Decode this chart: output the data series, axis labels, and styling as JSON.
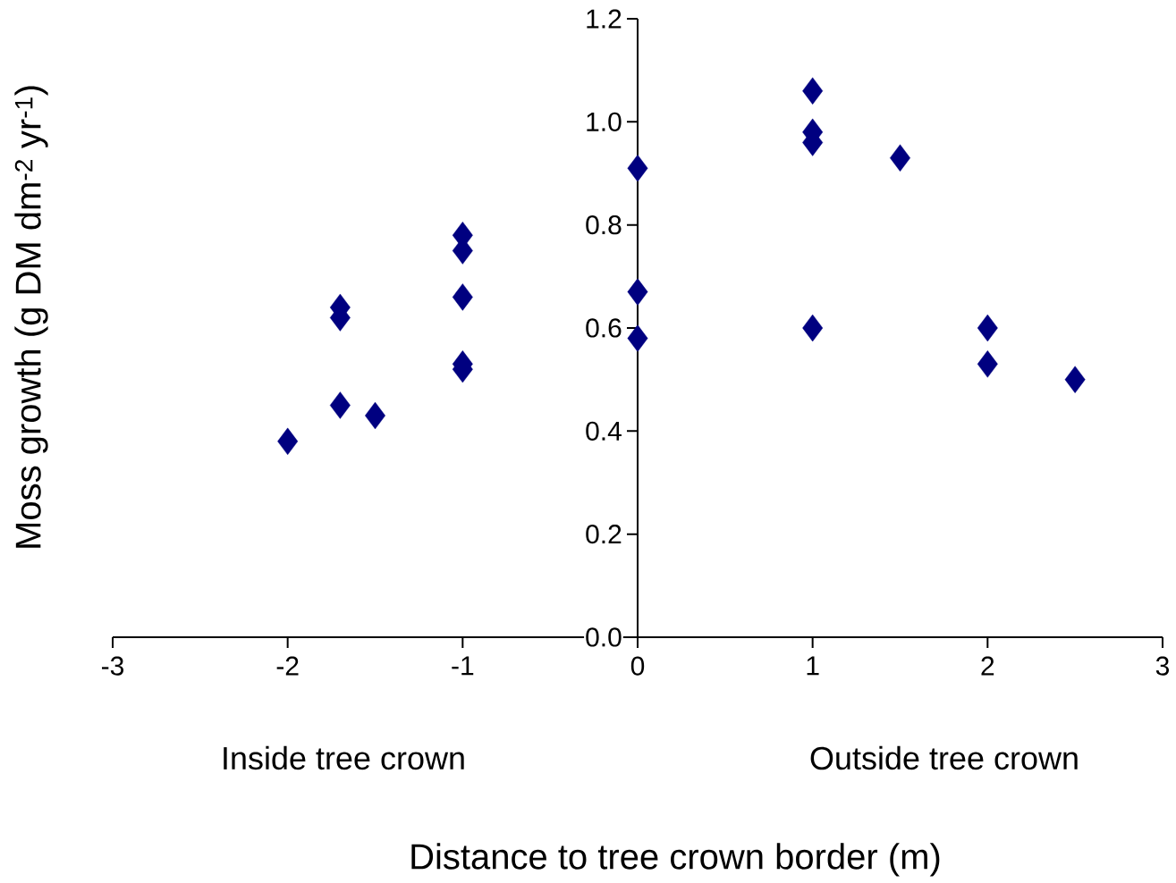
{
  "chart_data": {
    "type": "scatter",
    "xlabel": "Distance to tree crown border (m)",
    "ylabel": "Moss growth (g DM dm$^{-2}$ yr$^{-1}$)",
    "x": [
      -2,
      -1.7,
      -1.7,
      -1.7,
      -1.5,
      -1,
      -1,
      -1,
      -1,
      -1,
      0,
      0,
      0,
      1,
      1,
      1,
      1,
      1.5,
      2,
      2,
      2.5
    ],
    "values": [
      0.38,
      0.64,
      0.62,
      0.45,
      0.43,
      0.78,
      0.75,
      0.66,
      0.53,
      0.52,
      0.91,
      0.67,
      0.58,
      1.06,
      0.98,
      0.96,
      0.6,
      0.93,
      0.6,
      0.53,
      0.5
    ],
    "color": "#000080",
    "marker": "diamond",
    "xlim": [
      -3,
      3
    ],
    "xticks": [
      -3,
      -2,
      -1,
      0,
      1,
      2,
      3
    ],
    "ylim": [
      0,
      1.2
    ],
    "yticks": [
      {
        "value": 0,
        "label": "0.0"
      },
      0.2,
      0.4,
      0.6,
      0.8,
      {
        "value": 1,
        "label": "1.0"
      },
      1.2
    ],
    "annotations": [
      "Inside tree crown",
      "Outside tree crown"
    ],
    "grid": false
  }
}
